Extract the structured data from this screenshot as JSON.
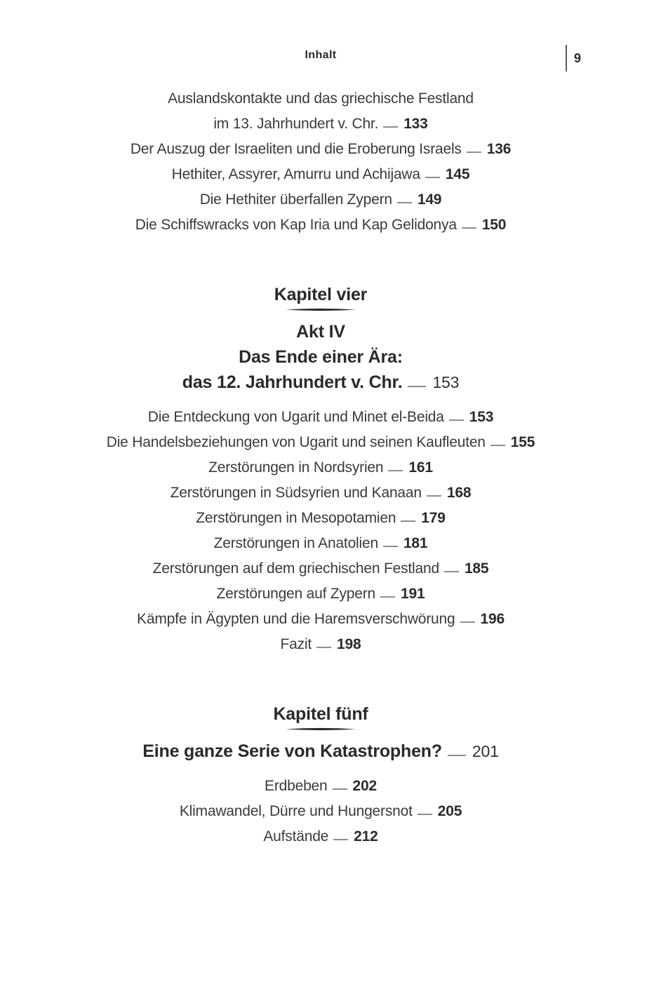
{
  "header": {
    "title": "Inhalt",
    "page_number": "9"
  },
  "colors": {
    "text": "#3b3a39",
    "heading": "#2b2a29",
    "leader_dash": "#8f8d8b",
    "background": "#ffffff"
  },
  "sections": [
    {
      "type": "entries",
      "entries": [
        {
          "lines": [
            "Auslandskontakte und das griechische Festland",
            "im 13. Jahrhundert v. Chr."
          ],
          "page": "133"
        },
        {
          "lines": [
            "Der Auszug der Israeliten und die Eroberung Israels"
          ],
          "page": "136"
        },
        {
          "lines": [
            "Hethiter, Assyrer, Amurru und Achijawa"
          ],
          "page": "145"
        },
        {
          "lines": [
            "Die Hethiter überfallen Zypern"
          ],
          "page": "149"
        },
        {
          "lines": [
            "Die Schiffswracks von Kap Iria und Kap Gelidonya"
          ],
          "page": "150"
        }
      ]
    },
    {
      "type": "chapter",
      "chapter_label": "Kapitel vier",
      "title_lines": [
        "Akt IV",
        "Das Ende einer Ära:",
        "das 12. Jahrhundert v. Chr."
      ],
      "title_page": "153",
      "entries": [
        {
          "lines": [
            "Die Entdeckung von Ugarit und Minet el-Beida"
          ],
          "page": "153"
        },
        {
          "lines": [
            "Die Handelsbeziehungen von Ugarit und seinen Kaufleuten"
          ],
          "page": "155"
        },
        {
          "lines": [
            "Zerstörungen in Nordsyrien"
          ],
          "page": "161"
        },
        {
          "lines": [
            "Zerstörungen in Südsyrien und Kanaan"
          ],
          "page": "168"
        },
        {
          "lines": [
            "Zerstörungen in Mesopotamien"
          ],
          "page": "179"
        },
        {
          "lines": [
            "Zerstörungen in Anatolien"
          ],
          "page": "181"
        },
        {
          "lines": [
            "Zerstörungen auf dem griechischen Festland"
          ],
          "page": "185"
        },
        {
          "lines": [
            "Zerstörungen auf Zypern"
          ],
          "page": "191"
        },
        {
          "lines": [
            "Kämpfe in Ägypten und die Haremsverschwörung"
          ],
          "page": "196"
        },
        {
          "lines": [
            "Fazit"
          ],
          "page": "198"
        }
      ]
    },
    {
      "type": "chapter",
      "chapter_label": "Kapitel fünf",
      "title_lines": [
        "Eine ganze Serie von Katastrophen?"
      ],
      "title_page": "201",
      "entries": [
        {
          "lines": [
            "Erdbeben"
          ],
          "page": "202"
        },
        {
          "lines": [
            "Klimawandel, Dürre und Hungersnot"
          ],
          "page": "205"
        },
        {
          "lines": [
            "Aufstände"
          ],
          "page": "212"
        }
      ]
    }
  ]
}
